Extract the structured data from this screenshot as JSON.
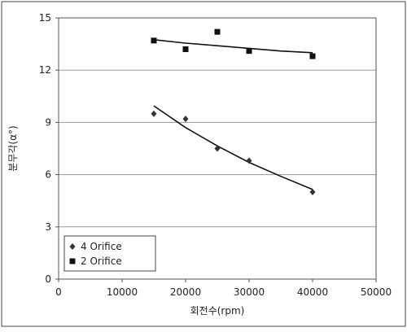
{
  "chart_data": {
    "type": "scatter",
    "xlabel": "회전수(rpm)",
    "ylabel": "분무각(α°)",
    "xlim": [
      0,
      50000
    ],
    "ylim": [
      0,
      15
    ],
    "x_ticks": [
      0,
      10000,
      20000,
      30000,
      40000,
      50000
    ],
    "y_ticks": [
      0,
      3,
      6,
      9,
      12,
      15
    ],
    "grid": "horizontal",
    "legend_position": "bottom-left",
    "series": [
      {
        "name": "4 Orifice",
        "marker": "diamond",
        "points": [
          [
            15000,
            9.5
          ],
          [
            20000,
            9.2
          ],
          [
            25000,
            7.5
          ],
          [
            30000,
            6.8
          ],
          [
            40000,
            5.0
          ]
        ],
        "trend": [
          [
            15000,
            9.95
          ],
          [
            20000,
            8.7
          ],
          [
            25000,
            7.65
          ],
          [
            30000,
            6.7
          ],
          [
            35000,
            5.9
          ],
          [
            40000,
            5.15
          ]
        ]
      },
      {
        "name": "2 Orifice",
        "marker": "square",
        "points": [
          [
            15000,
            13.7
          ],
          [
            20000,
            13.2
          ],
          [
            25000,
            14.2
          ],
          [
            30000,
            13.1
          ],
          [
            40000,
            12.8
          ]
        ],
        "trend": [
          [
            15000,
            13.75
          ],
          [
            20000,
            13.55
          ],
          [
            25000,
            13.4
          ],
          [
            30000,
            13.25
          ],
          [
            35000,
            13.1
          ],
          [
            40000,
            13.0
          ]
        ]
      }
    ]
  }
}
